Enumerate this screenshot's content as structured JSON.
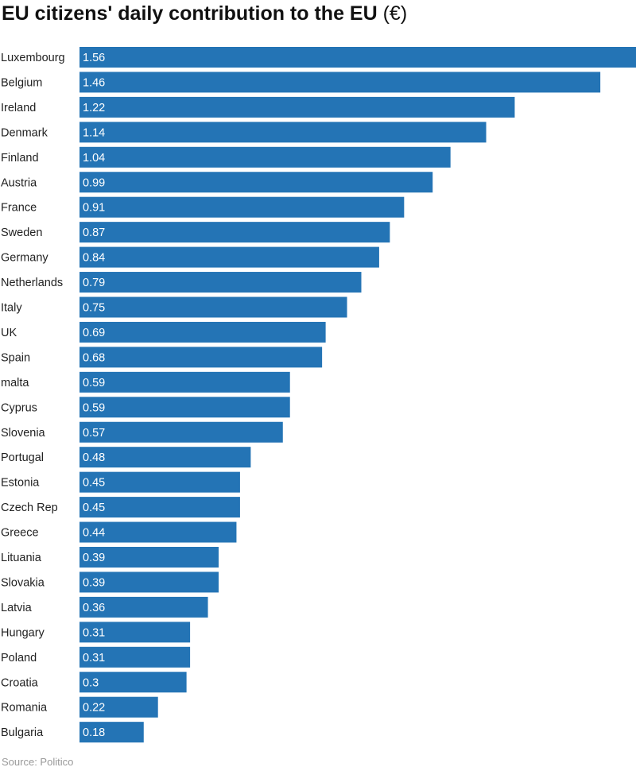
{
  "title": {
    "main": "EU citizens' daily contribution to the EU",
    "unit": "(€)"
  },
  "source": "Source: Politico",
  "colors": {
    "bar": "#2474b5",
    "label_text": "#ffffff"
  },
  "chart_data": {
    "type": "bar",
    "orientation": "horizontal",
    "title": "EU citizens' daily contribution to the EU (€)",
    "xlabel": "",
    "ylabel": "",
    "xlim": [
      0,
      1.56
    ],
    "grid": false,
    "data_labels": "inside-left",
    "categories": [
      "Luxembourg",
      "Belgium",
      "Ireland",
      "Denmark",
      "Finland",
      "Austria",
      "France",
      "Sweden",
      "Germany",
      "Netherlands",
      "Italy",
      "UK",
      "Spain",
      "malta",
      "Cyprus",
      "Slovenia",
      "Portugal",
      "Estonia",
      "Czech Rep",
      "Greece",
      "Lituania",
      "Slovakia",
      "Latvia",
      "Hungary",
      "Poland",
      "Croatia",
      "Romania",
      "Bulgaria"
    ],
    "values": [
      1.56,
      1.46,
      1.22,
      1.14,
      1.04,
      0.99,
      0.91,
      0.87,
      0.84,
      0.79,
      0.75,
      0.69,
      0.68,
      0.59,
      0.59,
      0.57,
      0.48,
      0.45,
      0.45,
      0.44,
      0.39,
      0.39,
      0.36,
      0.31,
      0.31,
      0.3,
      0.22,
      0.18
    ],
    "value_labels": [
      "1.56",
      "1.46",
      "1.22",
      "1.14",
      "1.04",
      "0.99",
      "0.91",
      "0.87",
      "0.84",
      "0.79",
      "0.75",
      "0.69",
      "0.68",
      "0.59",
      "0.59",
      "0.57",
      "0.48",
      "0.45",
      "0.45",
      "0.44",
      "0.39",
      "0.39",
      "0.36",
      "0.31",
      "0.31",
      "0.3",
      "0.22",
      "0.18"
    ]
  }
}
